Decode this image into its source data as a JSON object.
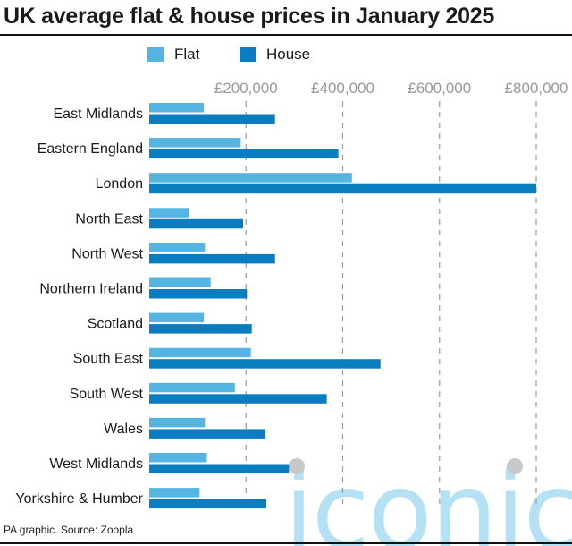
{
  "chart_data": {
    "type": "bar",
    "orientation": "horizontal",
    "title": "UK average flat & house prices in January 2025",
    "categories": [
      "East Midlands",
      "Eastern England",
      "London",
      "North East",
      "North West",
      "Northern Ireland",
      "Scotland",
      "South East",
      "South West",
      "Wales",
      "West Midlands",
      "Yorkshire & Humber"
    ],
    "series": [
      {
        "name": "Flat",
        "color": "#55b4e2",
        "values": [
          113000,
          189000,
          419000,
          83000,
          115000,
          127000,
          113000,
          210000,
          177000,
          115000,
          119000,
          104000
        ]
      },
      {
        "name": "House",
        "color": "#0a7dc0",
        "values": [
          260000,
          391000,
          800000,
          194000,
          260000,
          202000,
          212000,
          478000,
          367000,
          240000,
          289000,
          242000
        ]
      }
    ],
    "xlim": [
      0,
      800000
    ],
    "ticks": [
      200000,
      400000,
      600000,
      800000
    ],
    "tick_labels": [
      "£200,000",
      "£400,000",
      "£600,000",
      "£800,000"
    ],
    "grid": "vertical dashed",
    "legend": "top",
    "xlabel": "",
    "ylabel": ""
  },
  "footer": "PA graphic. Source: Zoopla",
  "watermark": "iconic"
}
